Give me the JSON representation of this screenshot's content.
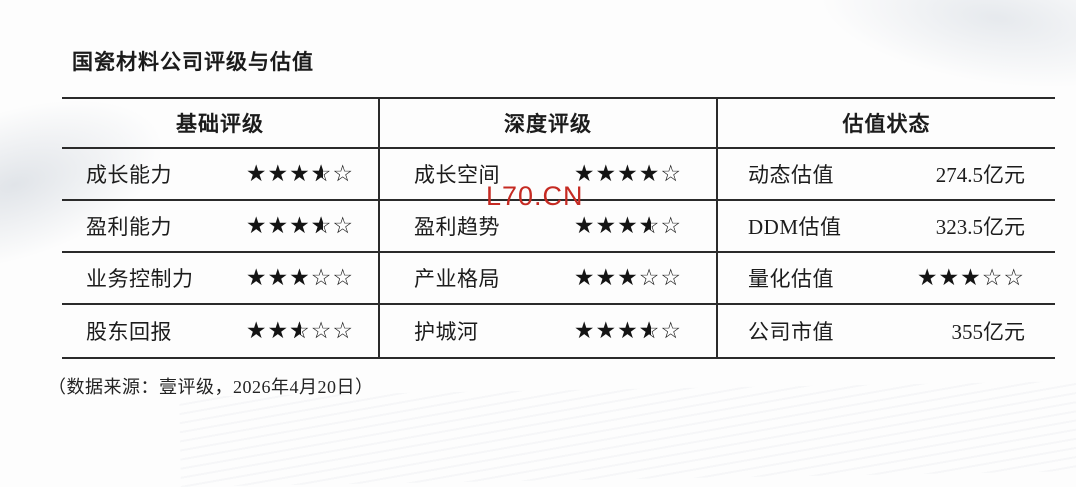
{
  "title": "国瓷材料公司评级与估值",
  "watermark": {
    "text": "L70.CN",
    "color": "#c52a22"
  },
  "footer_note": "（数据来源：壹评级，2026年4月20日）",
  "star_colors": {
    "filled": "#141414",
    "empty_outline": "#141414"
  },
  "table": {
    "headers": [
      "基础评级",
      "深度评级",
      "估值状态"
    ],
    "rows": [
      {
        "basic": {
          "label": "成长能力",
          "stars": 3.5
        },
        "depth": {
          "label": "成长空间",
          "stars": 4
        },
        "valuation": {
          "label": "动态估值",
          "value": "274.5亿元"
        }
      },
      {
        "basic": {
          "label": "盈利能力",
          "stars": 3.5
        },
        "depth": {
          "label": "盈利趋势",
          "stars": 3.5
        },
        "valuation": {
          "label": "DDM估值",
          "value": "323.5亿元"
        }
      },
      {
        "basic": {
          "label": "业务控制力",
          "stars": 3
        },
        "depth": {
          "label": "产业格局",
          "stars": 3
        },
        "valuation": {
          "label": "量化估值",
          "stars": 3
        }
      },
      {
        "basic": {
          "label": "股东回报",
          "stars": 2.5
        },
        "depth": {
          "label": "护城河",
          "stars": 3.5
        },
        "valuation": {
          "label": "公司市值",
          "value": "355亿元"
        }
      }
    ]
  }
}
